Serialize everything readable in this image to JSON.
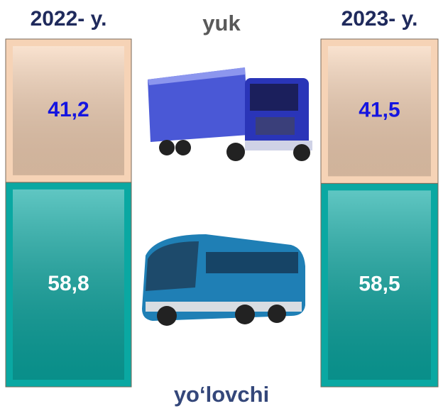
{
  "chart_data": {
    "type": "bar",
    "stacked": true,
    "categories": [
      "2022- y.",
      "2023- y."
    ],
    "series": [
      {
        "name": "yuk",
        "color": "#f6d3b6",
        "values": [
          41.2,
          41.5
        ],
        "value_labels": [
          "41,2",
          "41,5"
        ]
      },
      {
        "name": "yo‘lovchi",
        "color": "#0aa8a2",
        "values": [
          58.8,
          58.5
        ],
        "value_labels": [
          "58,8",
          "58,5"
        ]
      }
    ]
  }
}
